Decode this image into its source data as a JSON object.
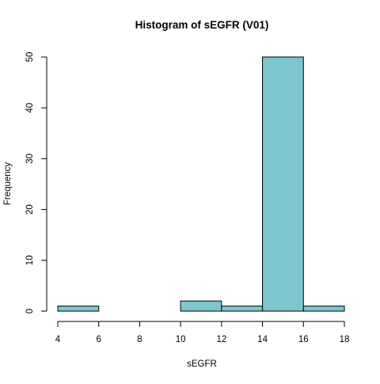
{
  "chart_data": {
    "type": "histogram",
    "title": "Histogram of sEGFR (V01)",
    "xlabel": "sEGFR",
    "ylabel": "Frequency",
    "bins": [
      {
        "start": 4,
        "end": 6,
        "count": 1
      },
      {
        "start": 6,
        "end": 8,
        "count": 0
      },
      {
        "start": 8,
        "end": 10,
        "count": 0
      },
      {
        "start": 10,
        "end": 12,
        "count": 2
      },
      {
        "start": 12,
        "end": 14,
        "count": 1
      },
      {
        "start": 14,
        "end": 16,
        "count": 50
      },
      {
        "start": 16,
        "end": 18,
        "count": 1
      }
    ],
    "xlim": [
      4,
      18
    ],
    "ylim": [
      0,
      50
    ],
    "xticks": [
      "4",
      "6",
      "8",
      "10",
      "12",
      "14",
      "16",
      "18"
    ],
    "yticks": [
      "0",
      "10",
      "20",
      "30",
      "40",
      "50"
    ],
    "bar_fill": "#7EC6CF",
    "bar_stroke": "#000000",
    "grid": false,
    "legend": "none"
  }
}
